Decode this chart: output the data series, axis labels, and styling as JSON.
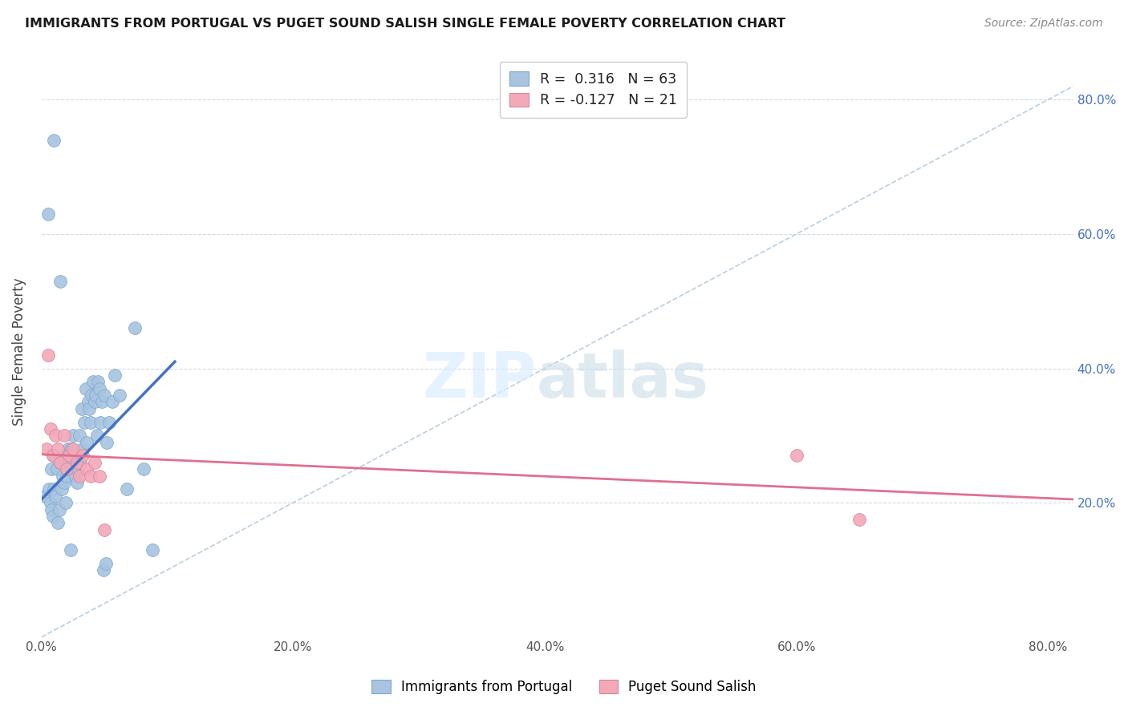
{
  "title": "IMMIGRANTS FROM PORTUGAL VS PUGET SOUND SALISH SINGLE FEMALE POVERTY CORRELATION CHART",
  "source": "Source: ZipAtlas.com",
  "ylabel": "Single Female Poverty",
  "xlim": [
    0.0,
    0.82
  ],
  "ylim": [
    0.0,
    0.85
  ],
  "xtick_labels": [
    "0.0%",
    "20.0%",
    "40.0%",
    "60.0%",
    "80.0%"
  ],
  "xtick_vals": [
    0.0,
    0.2,
    0.4,
    0.6,
    0.8
  ],
  "ytick_vals_right": [
    0.2,
    0.4,
    0.6,
    0.8
  ],
  "ytick_labels_right": [
    "20.0%",
    "40.0%",
    "60.0%",
    "80.0%"
  ],
  "legend_label1": "Immigrants from Portugal",
  "legend_label2": "Puget Sound Salish",
  "R1": 0.316,
  "N1": 63,
  "R2": -0.127,
  "N2": 21,
  "color_blue": "#a8c4e0",
  "color_pink": "#f4a8b8",
  "line_blue": "#4472c4",
  "line_pink": "#e07090",
  "line_diag_color": "#b8cfe0",
  "blue_scatter_x": [
    0.003,
    0.005,
    0.006,
    0.007,
    0.008,
    0.008,
    0.009,
    0.009,
    0.01,
    0.01,
    0.011,
    0.012,
    0.013,
    0.014,
    0.015,
    0.015,
    0.016,
    0.017,
    0.018,
    0.018,
    0.019,
    0.02,
    0.021,
    0.022,
    0.023,
    0.024,
    0.025,
    0.025,
    0.026,
    0.027,
    0.028,
    0.029,
    0.03,
    0.031,
    0.032,
    0.033,
    0.034,
    0.035,
    0.036,
    0.037,
    0.038,
    0.039,
    0.04,
    0.041,
    0.042,
    0.043,
    0.044,
    0.045,
    0.046,
    0.047,
    0.048,
    0.049,
    0.05,
    0.051,
    0.052,
    0.054,
    0.056,
    0.058,
    0.062,
    0.068,
    0.074,
    0.081,
    0.088
  ],
  "blue_scatter_y": [
    0.21,
    0.63,
    0.22,
    0.2,
    0.25,
    0.19,
    0.27,
    0.18,
    0.74,
    0.22,
    0.21,
    0.25,
    0.17,
    0.19,
    0.53,
    0.26,
    0.22,
    0.24,
    0.23,
    0.27,
    0.2,
    0.24,
    0.28,
    0.26,
    0.13,
    0.28,
    0.25,
    0.3,
    0.27,
    0.24,
    0.23,
    0.25,
    0.3,
    0.26,
    0.34,
    0.28,
    0.32,
    0.37,
    0.29,
    0.35,
    0.34,
    0.32,
    0.36,
    0.38,
    0.35,
    0.36,
    0.3,
    0.38,
    0.37,
    0.32,
    0.35,
    0.1,
    0.36,
    0.11,
    0.29,
    0.32,
    0.35,
    0.39,
    0.36,
    0.22,
    0.46,
    0.25,
    0.13
  ],
  "pink_scatter_x": [
    0.004,
    0.005,
    0.007,
    0.009,
    0.011,
    0.013,
    0.015,
    0.018,
    0.02,
    0.022,
    0.025,
    0.028,
    0.03,
    0.033,
    0.036,
    0.039,
    0.042,
    0.046,
    0.05,
    0.6,
    0.65
  ],
  "pink_scatter_y": [
    0.28,
    0.42,
    0.31,
    0.27,
    0.3,
    0.28,
    0.26,
    0.3,
    0.25,
    0.27,
    0.28,
    0.26,
    0.24,
    0.27,
    0.25,
    0.24,
    0.26,
    0.24,
    0.16,
    0.27,
    0.175
  ],
  "blue_line_x": [
    0.0,
    0.106
  ],
  "blue_line_y": [
    0.205,
    0.41
  ],
  "pink_line_x": [
    0.0,
    0.82
  ],
  "pink_line_y": [
    0.272,
    0.205
  ]
}
